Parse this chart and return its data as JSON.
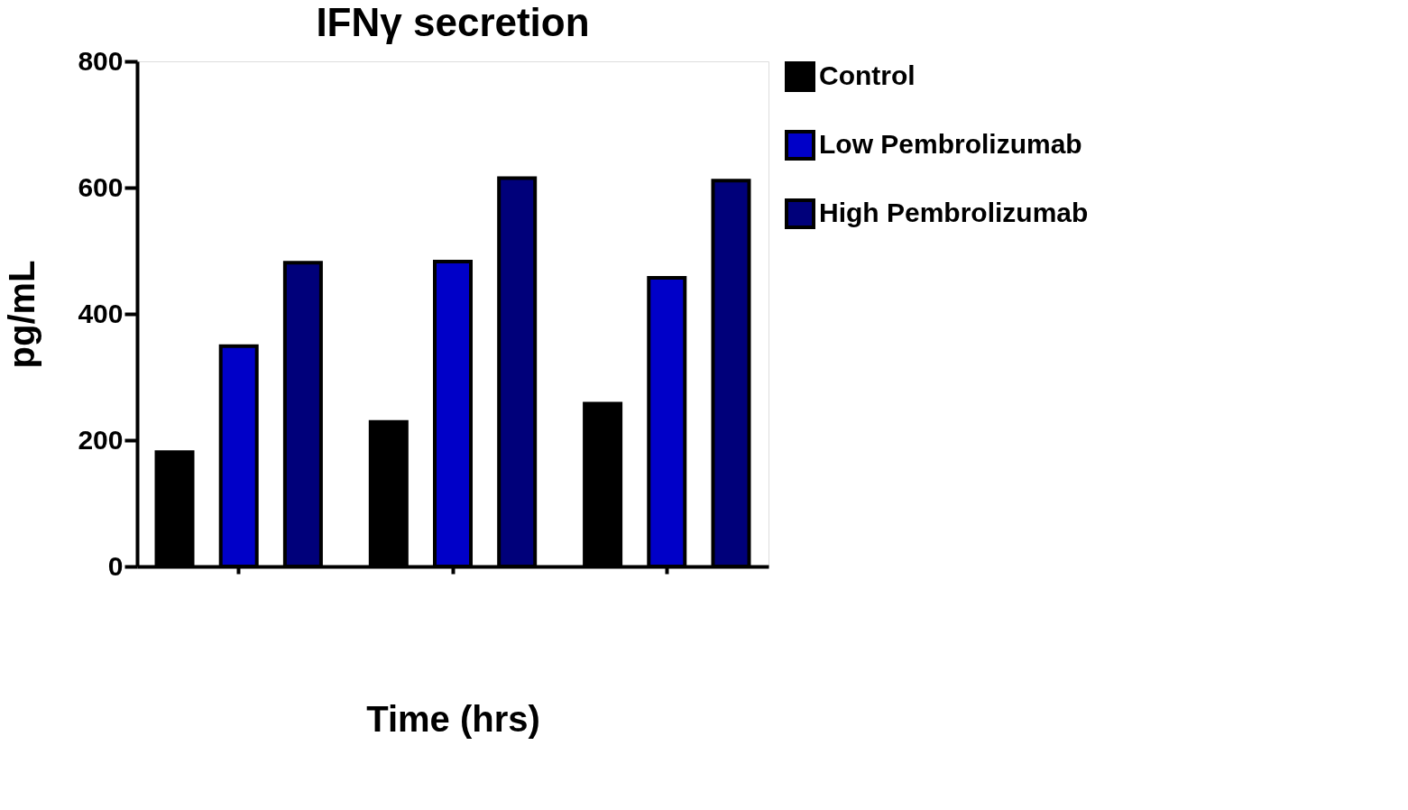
{
  "chart_data": {
    "type": "bar",
    "title": "IFNγ secretion",
    "xlabel": "Time (hrs)",
    "ylabel": "pg/mL",
    "categories": [
      null,
      null,
      null
    ],
    "series": [
      {
        "name": "Control",
        "color": "#000000",
        "values": [
          181,
          229,
          258
        ]
      },
      {
        "name": "Low Pembrolizumab",
        "color": "#0000c8",
        "values": [
          349,
          483,
          457
        ]
      },
      {
        "name": "High Pembrolizumab",
        "color": "#00007a",
        "values": [
          481,
          615,
          611
        ]
      }
    ],
    "ylim": [
      0,
      800
    ],
    "yticks": [
      0,
      200,
      400,
      600,
      800
    ],
    "grid": false,
    "legend": "top right"
  }
}
